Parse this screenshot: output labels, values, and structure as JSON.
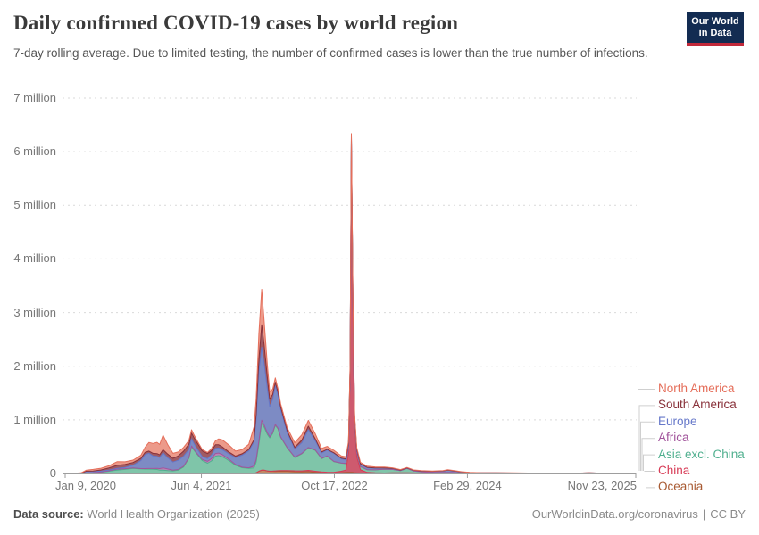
{
  "logo": {
    "line1": "Our World",
    "line2": "in Data"
  },
  "footer": {
    "source_label": "Data source:",
    "source": "World Health Organization (2025)",
    "site": "OurWorldinData.org/coronavirus",
    "separator": "|",
    "license": "CC BY"
  },
  "chart_data": {
    "type": "area",
    "stacked": true,
    "title": "Daily confirmed COVID-19 cases by world region",
    "subtitle": "7-day rolling average. Due to limited testing, the number of confirmed cases is lower than the true number of infections.",
    "grid": "dashed-horizontal",
    "legend_position": "right",
    "ylim": [
      0,
      7
    ],
    "y_unit": "million",
    "y_ticks": [
      {
        "label": "0",
        "v": 0
      },
      {
        "label": "1 million",
        "v": 1
      },
      {
        "label": "2 million",
        "v": 2
      },
      {
        "label": "3 million",
        "v": 3
      },
      {
        "label": "4 million",
        "v": 4
      },
      {
        "label": "5 million",
        "v": 5
      },
      {
        "label": "6 million",
        "v": 6
      },
      {
        "label": "7 million",
        "v": 7
      }
    ],
    "x_ticks": [
      {
        "label": "Jan 9, 2020",
        "t": 0,
        "align": "left"
      },
      {
        "label": "Jun 4, 2021",
        "t": 512,
        "align": "center"
      },
      {
        "label": "Oct 17, 2022",
        "t": 1012,
        "align": "center"
      },
      {
        "label": "Feb 29, 2024",
        "t": 1512,
        "align": "center"
      },
      {
        "label": "Nov 23, 2025",
        "t": 2145,
        "align": "right"
      }
    ],
    "x_days": [
      0,
      20,
      40,
      60,
      80,
      105,
      135,
      165,
      195,
      225,
      255,
      285,
      300,
      315,
      330,
      345,
      355,
      368,
      385,
      405,
      425,
      445,
      465,
      475,
      483,
      495,
      515,
      535,
      550,
      565,
      577,
      590,
      615,
      640,
      665,
      690,
      710,
      718,
      728,
      739,
      748,
      760,
      769,
      780,
      790,
      800,
      810,
      835,
      863,
      890,
      914,
      940,
      964,
      985,
      1010,
      1038,
      1055,
      1065,
      1071,
      1076,
      1082,
      1088,
      1096,
      1110,
      1135,
      1165,
      1200,
      1230,
      1260,
      1285,
      1310,
      1340,
      1380,
      1420,
      1438,
      1460,
      1490,
      1520,
      1560,
      1620,
      1680,
      1740,
      1800,
      1860,
      1920,
      1970,
      2010,
      2080,
      2145
    ],
    "series": [
      {
        "id": "oceania",
        "label": "Oceania",
        "color": "#A85A32",
        "fill": "#C28A66",
        "values": [
          0,
          0,
          0,
          0,
          0.001,
          0.001,
          0.001,
          0.001,
          0.001,
          0.001,
          0.001,
          0.001,
          0.001,
          0.001,
          0.001,
          0.001,
          0.001,
          0.001,
          0.001,
          0.001,
          0.001,
          0.001,
          0.001,
          0.001,
          0.001,
          0.001,
          0.001,
          0.001,
          0.002,
          0.002,
          0.002,
          0.003,
          0.002,
          0.002,
          0.002,
          0.003,
          0.004,
          0.01,
          0.04,
          0.06,
          0.06,
          0.045,
          0.04,
          0.04,
          0.038,
          0.04,
          0.042,
          0.04,
          0.032,
          0.028,
          0.033,
          0.02,
          0.01,
          0.008,
          0.009,
          0.014,
          0.018,
          0.02,
          0.02,
          0.02,
          0.018,
          0.015,
          0.012,
          0.008,
          0.005,
          0.004,
          0.003,
          0.003,
          0.002,
          0.002,
          0.002,
          0.002,
          0.001,
          0.001,
          0.001,
          0.001,
          0.001,
          0.001,
          0.001,
          0,
          0,
          0,
          0,
          0,
          0,
          0,
          0,
          0,
          0
        ]
      },
      {
        "id": "china",
        "label": "China",
        "color": "#D73A55",
        "fill": "#CE5A6E",
        "values": [
          0.001,
          0.004,
          0.005,
          0.002,
          0.001,
          0.001,
          0.001,
          0.001,
          0.001,
          0.001,
          0.001,
          0.001,
          0.001,
          0.001,
          0.001,
          0.001,
          0.001,
          0.001,
          0.001,
          0.001,
          0.001,
          0.001,
          0.001,
          0.001,
          0.001,
          0.001,
          0.001,
          0.001,
          0.001,
          0.001,
          0.001,
          0.001,
          0.001,
          0.001,
          0.001,
          0.001,
          0.001,
          0.002,
          0.002,
          0.003,
          0.003,
          0.003,
          0.003,
          0.005,
          0.01,
          0.012,
          0.012,
          0.015,
          0.018,
          0.02,
          0.025,
          0.022,
          0.018,
          0.015,
          0.012,
          0.028,
          0.045,
          0.35,
          1.8,
          6.1,
          3.0,
          0.9,
          0.3,
          0.06,
          0.015,
          0.008,
          0.006,
          0.008,
          0.01,
          0.012,
          0.008,
          0.004,
          0.003,
          0.003,
          0.003,
          0.002,
          0.002,
          0.001,
          0.001,
          0.001,
          0.001,
          0.001,
          0.001,
          0.001,
          0.001,
          0.001,
          0.001,
          0,
          0
        ]
      },
      {
        "id": "asia-excl-china",
        "label": "Asia excl. China",
        "color": "#4FAF8E",
        "fill": "#7FC5A9",
        "values": [
          0.001,
          0.001,
          0.001,
          0.002,
          0.006,
          0.008,
          0.02,
          0.04,
          0.062,
          0.075,
          0.093,
          0.082,
          0.08,
          0.08,
          0.077,
          0.072,
          0.062,
          0.062,
          0.052,
          0.046,
          0.06,
          0.12,
          0.28,
          0.5,
          0.44,
          0.36,
          0.24,
          0.19,
          0.23,
          0.32,
          0.33,
          0.31,
          0.24,
          0.15,
          0.105,
          0.09,
          0.1,
          0.2,
          0.5,
          0.88,
          0.8,
          0.68,
          0.62,
          0.7,
          0.85,
          0.78,
          0.62,
          0.42,
          0.25,
          0.32,
          0.42,
          0.39,
          0.25,
          0.3,
          0.2,
          0.15,
          0.12,
          0.105,
          0.1,
          0.1,
          0.095,
          0.09,
          0.08,
          0.06,
          0.05,
          0.055,
          0.07,
          0.065,
          0.04,
          0.08,
          0.035,
          0.022,
          0.016,
          0.014,
          0.014,
          0.012,
          0.008,
          0.006,
          0.005,
          0.006,
          0.004,
          0.003,
          0.003,
          0.002,
          0.003,
          0.008,
          0.004,
          0.002,
          0.001
        ]
      },
      {
        "id": "africa",
        "label": "Africa",
        "color": "#A2559C",
        "fill": "#BC84B8",
        "values": [
          0,
          0,
          0,
          0,
          0.001,
          0.002,
          0.004,
          0.008,
          0.017,
          0.012,
          0.008,
          0.008,
          0.01,
          0.011,
          0.014,
          0.02,
          0.028,
          0.04,
          0.03,
          0.015,
          0.012,
          0.012,
          0.012,
          0.012,
          0.012,
          0.013,
          0.02,
          0.034,
          0.045,
          0.05,
          0.047,
          0.042,
          0.025,
          0.015,
          0.01,
          0.012,
          0.035,
          0.05,
          0.055,
          0.05,
          0.04,
          0.03,
          0.022,
          0.018,
          0.015,
          0.012,
          0.01,
          0.008,
          0.006,
          0.006,
          0.008,
          0.007,
          0.005,
          0.004,
          0.004,
          0.003,
          0.003,
          0.003,
          0.003,
          0.003,
          0.003,
          0.003,
          0.003,
          0.002,
          0.002,
          0.002,
          0.002,
          0.001,
          0.001,
          0.001,
          0.001,
          0.001,
          0.001,
          0.001,
          0.001,
          0.001,
          0,
          0,
          0,
          0,
          0,
          0,
          0,
          0,
          0,
          0,
          0,
          0,
          0
        ]
      },
      {
        "id": "europe",
        "label": "Europe",
        "color": "#6577C9",
        "fill": "#7D8BC4",
        "values": [
          0,
          0,
          0.001,
          0.005,
          0.033,
          0.027,
          0.018,
          0.015,
          0.016,
          0.024,
          0.052,
          0.15,
          0.26,
          0.285,
          0.235,
          0.225,
          0.205,
          0.28,
          0.21,
          0.15,
          0.172,
          0.19,
          0.152,
          0.135,
          0.115,
          0.09,
          0.055,
          0.05,
          0.07,
          0.095,
          0.095,
          0.09,
          0.1,
          0.13,
          0.225,
          0.315,
          0.45,
          0.75,
          1.3,
          1.36,
          1.15,
          0.82,
          0.56,
          0.62,
          0.72,
          0.62,
          0.51,
          0.27,
          0.15,
          0.2,
          0.33,
          0.17,
          0.1,
          0.11,
          0.15,
          0.08,
          0.068,
          0.06,
          0.058,
          0.055,
          0.055,
          0.05,
          0.045,
          0.04,
          0.035,
          0.028,
          0.02,
          0.015,
          0.01,
          0.009,
          0.012,
          0.016,
          0.018,
          0.028,
          0.042,
          0.032,
          0.016,
          0.009,
          0.005,
          0.004,
          0.004,
          0.003,
          0.002,
          0.001,
          0.001,
          0.002,
          0.001,
          0.001,
          0.001
        ]
      },
      {
        "id": "south-america",
        "label": "South America",
        "color": "#883039",
        "fill": "#A05B63",
        "values": [
          0,
          0,
          0,
          0.001,
          0.002,
          0.007,
          0.022,
          0.04,
          0.055,
          0.055,
          0.05,
          0.043,
          0.04,
          0.04,
          0.048,
          0.052,
          0.05,
          0.06,
          0.068,
          0.07,
          0.082,
          0.092,
          0.1,
          0.105,
          0.11,
          0.115,
          0.105,
          0.095,
          0.08,
          0.068,
          0.06,
          0.052,
          0.035,
          0.027,
          0.025,
          0.028,
          0.04,
          0.09,
          0.22,
          0.42,
          0.35,
          0.22,
          0.14,
          0.09,
          0.07,
          0.055,
          0.048,
          0.04,
          0.032,
          0.05,
          0.065,
          0.04,
          0.02,
          0.014,
          0.01,
          0.013,
          0.018,
          0.02,
          0.02,
          0.02,
          0.018,
          0.015,
          0.012,
          0.009,
          0.007,
          0.006,
          0.004,
          0.003,
          0.002,
          0.002,
          0.002,
          0.002,
          0.001,
          0.001,
          0.001,
          0.001,
          0.001,
          0.001,
          0,
          0,
          0,
          0,
          0,
          0,
          0,
          0,
          0,
          0,
          0
        ]
      },
      {
        "id": "north-america",
        "label": "North America",
        "color": "#E56E5A",
        "fill": "#EC9A8A",
        "values": [
          0,
          0,
          0,
          0.001,
          0.019,
          0.031,
          0.032,
          0.042,
          0.068,
          0.049,
          0.044,
          0.058,
          0.095,
          0.16,
          0.185,
          0.21,
          0.195,
          0.27,
          0.18,
          0.092,
          0.072,
          0.072,
          0.068,
          0.06,
          0.052,
          0.04,
          0.027,
          0.022,
          0.035,
          0.075,
          0.11,
          0.13,
          0.13,
          0.092,
          0.078,
          0.095,
          0.24,
          0.3,
          0.48,
          0.66,
          0.45,
          0.23,
          0.14,
          0.1,
          0.08,
          0.065,
          0.06,
          0.06,
          0.085,
          0.1,
          0.11,
          0.095,
          0.065,
          0.055,
          0.048,
          0.04,
          0.04,
          0.04,
          0.038,
          0.038,
          0.036,
          0.034,
          0.032,
          0.028,
          0.024,
          0.02,
          0.015,
          0.012,
          0.008,
          0.007,
          0.007,
          0.008,
          0.007,
          0.007,
          0.008,
          0.007,
          0.005,
          0.004,
          0.003,
          0.003,
          0.002,
          0.002,
          0.001,
          0.001,
          0.001,
          0.001,
          0.001,
          0.001,
          0
        ]
      }
    ]
  }
}
